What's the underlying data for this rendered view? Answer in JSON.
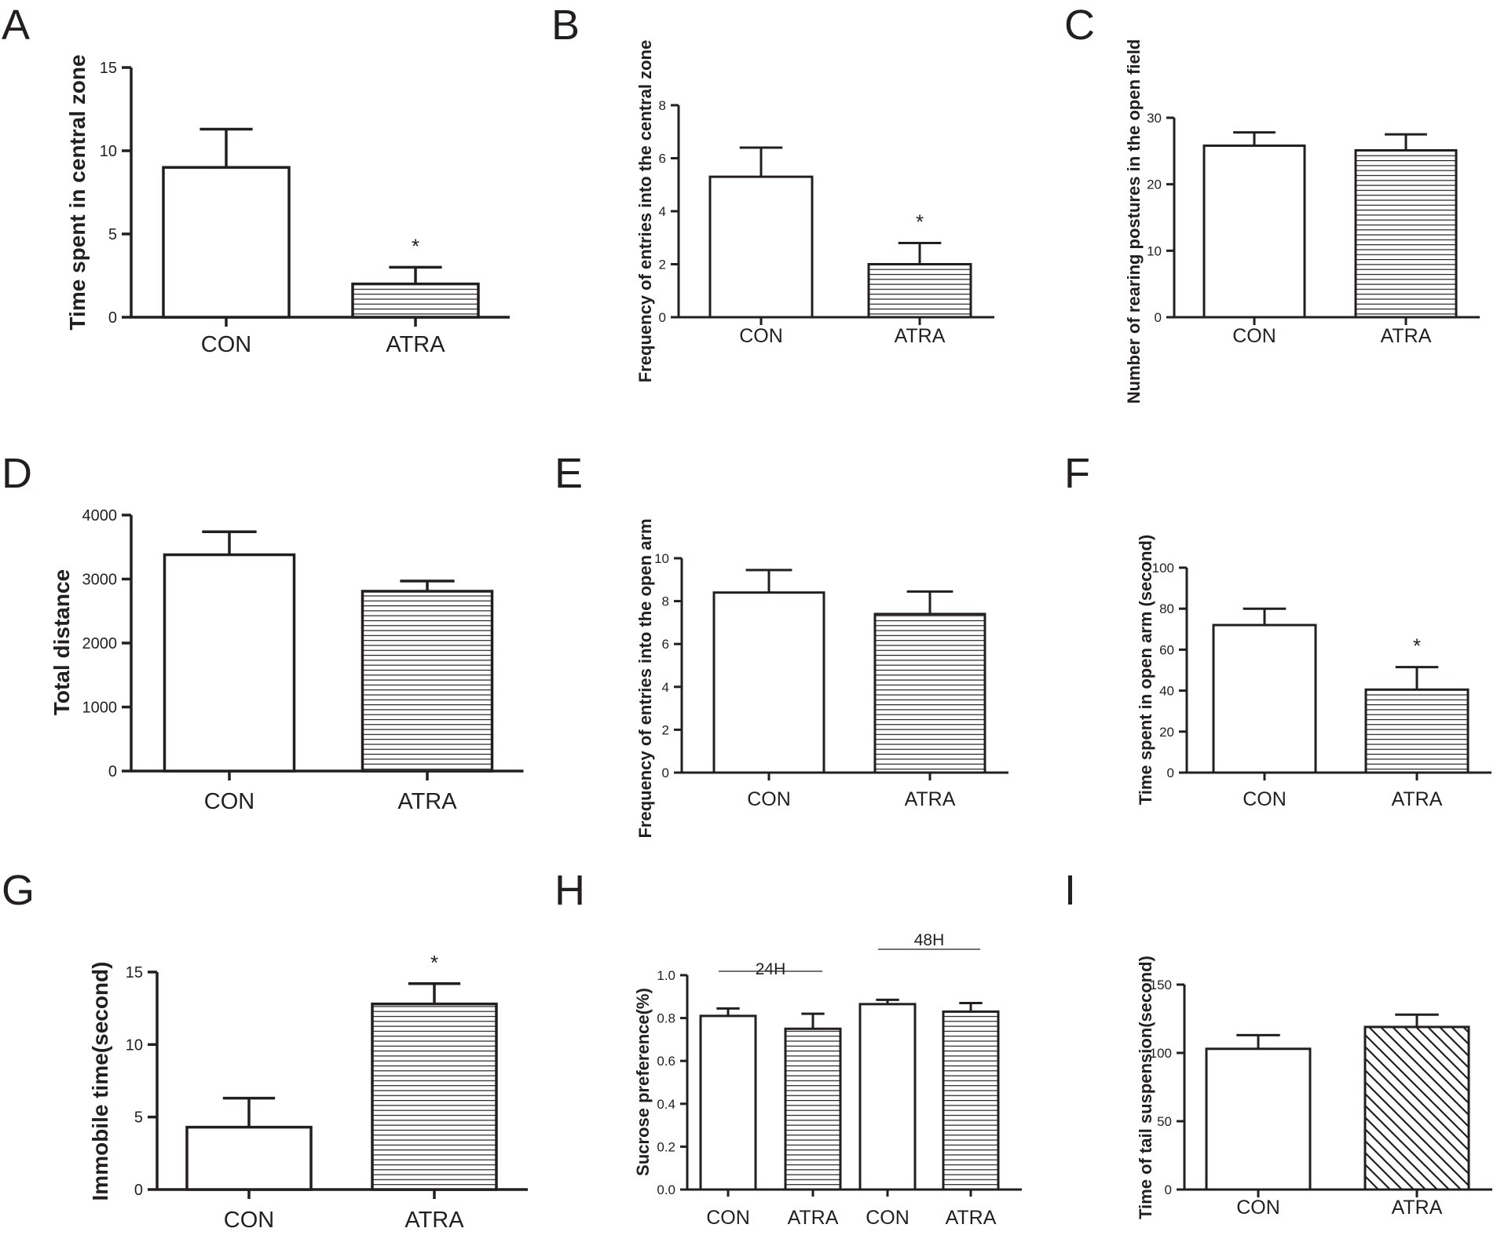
{
  "chart_data": [
    {
      "panel": "A",
      "type": "bar",
      "ylabel": "Time spent in central zone",
      "ylim": [
        0,
        15
      ],
      "yticks": [
        0,
        5,
        10,
        15
      ],
      "categories": [
        "CON",
        "ATRA"
      ],
      "values": [
        9.0,
        2.0
      ],
      "errors": [
        2.3,
        1.0
      ],
      "patterns": [
        "none",
        "horizontal"
      ],
      "significance": [
        "",
        "*"
      ]
    },
    {
      "panel": "B",
      "type": "bar",
      "ylabel": "Frequency of entries into the central zone",
      "ylim": [
        0,
        8
      ],
      "yticks": [
        0,
        2,
        4,
        6,
        8
      ],
      "categories": [
        "CON",
        "ATRA"
      ],
      "values": [
        5.3,
        2.0
      ],
      "errors": [
        1.1,
        0.8
      ],
      "patterns": [
        "none",
        "horizontal"
      ],
      "significance": [
        "",
        "*"
      ]
    },
    {
      "panel": "C",
      "type": "bar",
      "ylabel": "Number of rearing postures in the open field",
      "ylim": [
        0,
        30
      ],
      "yticks": [
        0,
        10,
        20,
        30
      ],
      "categories": [
        "CON",
        "ATRA"
      ],
      "values": [
        25.8,
        25.1
      ],
      "errors": [
        2.0,
        2.4
      ],
      "patterns": [
        "none",
        "horizontal"
      ],
      "significance": [
        "",
        ""
      ]
    },
    {
      "panel": "D",
      "type": "bar",
      "ylabel": "Total distance",
      "ylim": [
        0,
        4000
      ],
      "yticks": [
        0,
        1000,
        2000,
        3000,
        4000
      ],
      "categories": [
        "CON",
        "ATRA"
      ],
      "values": [
        3380,
        2810
      ],
      "errors": [
        360,
        160
      ],
      "patterns": [
        "none",
        "horizontal"
      ],
      "significance": [
        "",
        ""
      ]
    },
    {
      "panel": "E",
      "type": "bar",
      "ylabel": "Frequency of entries into the  open arm",
      "ylim": [
        0,
        10
      ],
      "yticks": [
        0,
        2,
        4,
        6,
        8,
        10
      ],
      "categories": [
        "CON",
        "ATRA"
      ],
      "values": [
        8.4,
        7.4
      ],
      "errors": [
        1.05,
        1.05
      ],
      "patterns": [
        "none",
        "horizontal"
      ],
      "significance": [
        "",
        ""
      ]
    },
    {
      "panel": "F",
      "type": "bar",
      "ylabel": "Time spent in open arm (second)",
      "ylim": [
        0,
        100
      ],
      "yticks": [
        0,
        20,
        40,
        60,
        80,
        100
      ],
      "categories": [
        "CON",
        "ATRA"
      ],
      "values": [
        72,
        40.5
      ],
      "errors": [
        8,
        11
      ],
      "patterns": [
        "none",
        "horizontal"
      ],
      "significance": [
        "",
        "*"
      ]
    },
    {
      "panel": "G",
      "type": "bar",
      "ylabel": "Immobile time(second)",
      "ylim": [
        0,
        15
      ],
      "yticks": [
        0,
        5,
        10,
        15
      ],
      "categories": [
        "CON",
        "ATRA"
      ],
      "values": [
        4.3,
        12.8
      ],
      "errors": [
        2.0,
        1.4
      ],
      "patterns": [
        "none",
        "horizontal"
      ],
      "significance": [
        "",
        "*"
      ]
    },
    {
      "panel": "H",
      "type": "bar",
      "ylabel": "Sucrose preference(%)",
      "ylim": [
        0,
        1.0
      ],
      "yticks": [
        "0.0",
        "0.2",
        "0.4",
        "0.6",
        "0.8",
        "1.0"
      ],
      "categories": [
        "CON",
        "ATRA",
        "CON",
        "ATRA"
      ],
      "values": [
        0.81,
        0.75,
        0.865,
        0.83
      ],
      "errors": [
        0.035,
        0.07,
        0.02,
        0.04
      ],
      "patterns": [
        "none",
        "horizontal",
        "none",
        "horizontal"
      ],
      "significance": [
        "",
        "",
        "",
        ""
      ],
      "groups": [
        {
          "label": "24H",
          "bars": [
            0,
            1
          ]
        },
        {
          "label": "48H",
          "bars": [
            2,
            3
          ]
        }
      ]
    },
    {
      "panel": "I",
      "type": "bar",
      "ylabel": "Time of tail suspension(second)",
      "ylim": [
        0,
        150
      ],
      "yticks": [
        0,
        50,
        100,
        150
      ],
      "categories": [
        "CON",
        "ATRA"
      ],
      "values": [
        103,
        119
      ],
      "errors": [
        10,
        9
      ],
      "patterns": [
        "none",
        "diagonal"
      ],
      "significance": [
        "",
        ""
      ]
    }
  ]
}
